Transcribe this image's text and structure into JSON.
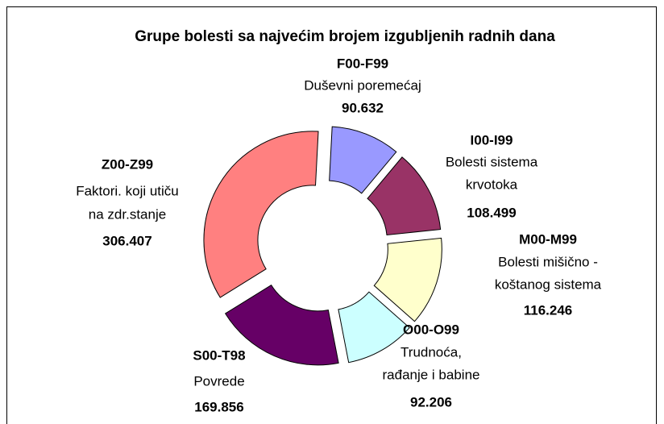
{
  "chart_data": {
    "type": "donut",
    "title": "Grupe bolesti sa najvećim brojem izgubljenih radnih dana",
    "categories": [
      "F00-F99",
      "I00-I99",
      "M00-M99",
      "O00-O99",
      "S00-T98",
      "Z00-Z99"
    ],
    "descriptions": [
      [
        "Duševni poremećaj"
      ],
      [
        "Bolesti sistema",
        "krvotoka"
      ],
      [
        "Bolesti mišično -",
        "koštanog sistema"
      ],
      [
        "Trudnoća,",
        "rađanje i babine"
      ],
      [
        "Povrede"
      ],
      [
        "Faktori. koji utiču",
        "na zdr.stanje"
      ]
    ],
    "values": [
      90632,
      108499,
      116246,
      92206,
      169856,
      306407
    ],
    "value_labels": [
      "90.632",
      "108.499",
      "116.246",
      "92.206",
      "169.856",
      "306.407"
    ],
    "colors": [
      "#9999ff",
      "#993366",
      "#ffffcc",
      "#ccffff",
      "#660066",
      "#ff8080"
    ]
  }
}
